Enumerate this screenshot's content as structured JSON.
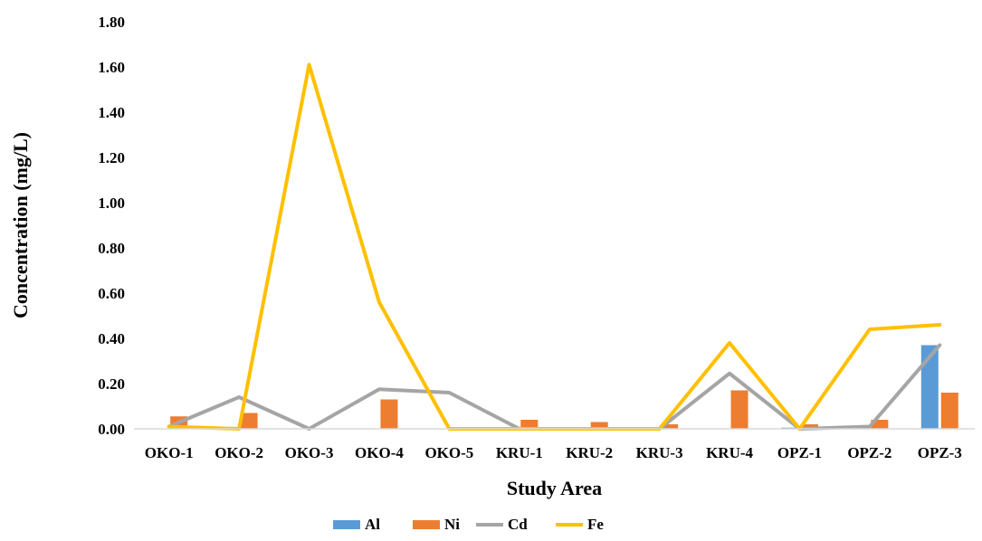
{
  "chart_data": {
    "type": "bar+line",
    "title": "",
    "xlabel": "Study Area",
    "ylabel": "Concentration  (mg/L)",
    "ylim": [
      0,
      1.8
    ],
    "yticks": [
      "0.00",
      "0.20",
      "0.40",
      "0.60",
      "0.80",
      "1.00",
      "1.20",
      "1.40",
      "1.60",
      "1.80"
    ],
    "categories": [
      "OKO-1",
      "OKO-2",
      "OKO-3",
      "OKO-4",
      "OKO-5",
      "KRU-1",
      "KRU-2",
      "KRU-3",
      "KRU-4",
      "OPZ-1",
      "OPZ-2",
      "OPZ-3"
    ],
    "grid": false,
    "legend_position": "bottom",
    "series": [
      {
        "name": "Al",
        "kind": "bar",
        "color": "#5B9BD5",
        "values": [
          0,
          0,
          0,
          0,
          0,
          0,
          0,
          0,
          0,
          0.005,
          0,
          0.37
        ]
      },
      {
        "name": "Ni",
        "kind": "bar",
        "color": "#ED7D31",
        "values": [
          0.055,
          0.07,
          0,
          0.13,
          0,
          0.04,
          0.03,
          0.02,
          0.17,
          0.02,
          0.04,
          0.16
        ]
      },
      {
        "name": "Cd",
        "kind": "line",
        "color": "#A5A5A5",
        "values": [
          0.01,
          0.14,
          0,
          0.175,
          0.16,
          0,
          0,
          0,
          0.245,
          0,
          0.01,
          0.37
        ]
      },
      {
        "name": "Fe",
        "kind": "line",
        "color": "#FFC000",
        "values": [
          0.01,
          0,
          1.61,
          0.56,
          0,
          0,
          0,
          0,
          0.38,
          0,
          0.44,
          0.46
        ]
      }
    ]
  }
}
